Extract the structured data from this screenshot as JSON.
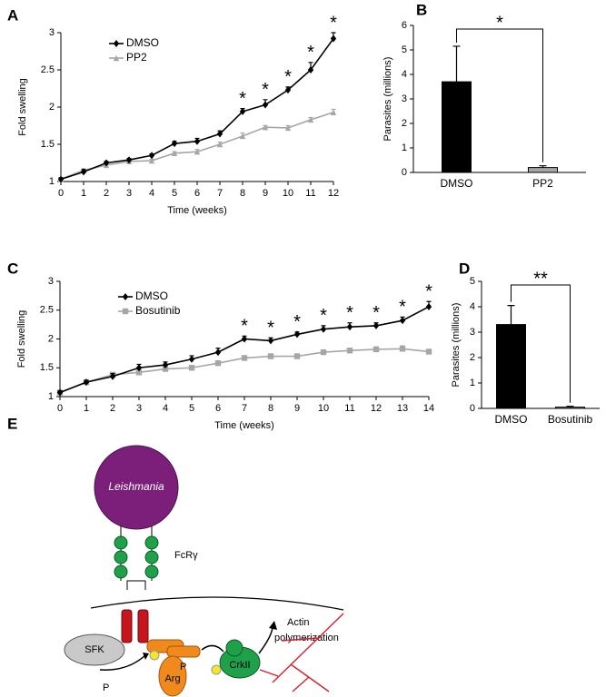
{
  "chart_data": [
    {
      "type": "line",
      "panel": "A",
      "xlabel": "Time (weeks)",
      "ylabel": "Fold swelling",
      "x": [
        0,
        1,
        2,
        3,
        4,
        5,
        6,
        7,
        8,
        9,
        10,
        11,
        12
      ],
      "xlim": [
        0,
        12
      ],
      "xticks": [
        0,
        1,
        2,
        3,
        4,
        5,
        6,
        7,
        8,
        9,
        10,
        11,
        12
      ],
      "ylim": [
        1,
        3
      ],
      "yticks": [
        1,
        1.5,
        2,
        2.5,
        3
      ],
      "legend": "upper left",
      "series": [
        {
          "name": "DMSO",
          "color": "#000000",
          "marker": "diamond",
          "values": [
            1.03,
            1.13,
            1.25,
            1.29,
            1.35,
            1.51,
            1.54,
            1.64,
            1.94,
            2.03,
            2.23,
            2.5,
            2.92
          ],
          "errors": [
            0.02,
            0.03,
            0.02,
            0.02,
            0.02,
            0.03,
            0.04,
            0.04,
            0.04,
            0.07,
            0.04,
            0.1,
            0.08
          ]
        },
        {
          "name": "PP2",
          "color": "#a6a6a6",
          "marker": "triangle",
          "values": [
            1.03,
            1.15,
            1.22,
            1.27,
            1.28,
            1.38,
            1.4,
            1.5,
            1.61,
            1.73,
            1.72,
            1.83,
            1.93
          ],
          "errors": [
            0.02,
            0.02,
            0.02,
            0.02,
            0.02,
            0.02,
            0.03,
            0.03,
            0.04,
            0.02,
            0.03,
            0.03,
            0.04
          ]
        }
      ],
      "annotations": [
        {
          "x": 8,
          "text": "*"
        },
        {
          "x": 9,
          "text": "*"
        },
        {
          "x": 10,
          "text": "*"
        },
        {
          "x": 11,
          "text": "*"
        },
        {
          "x": 12,
          "text": "*"
        }
      ]
    },
    {
      "type": "bar",
      "panel": "B",
      "ylabel": "Parasites (millions)",
      "categories": [
        "DMSO",
        "PP2"
      ],
      "values": [
        3.7,
        0.2
      ],
      "errors": [
        1.45,
        0.07
      ],
      "colors": [
        "#000000",
        "#a6a6a6"
      ],
      "ylim": [
        0,
        6
      ],
      "yticks": [
        0,
        1,
        2,
        3,
        4,
        5,
        6
      ],
      "significance": "*"
    },
    {
      "type": "line",
      "panel": "C",
      "xlabel": "Time (weeks)",
      "ylabel": "Fold swelling",
      "x": [
        0,
        1,
        2,
        3,
        4,
        5,
        6,
        7,
        8,
        9,
        10,
        11,
        12,
        13,
        14
      ],
      "xlim": [
        0,
        14
      ],
      "xticks": [
        0,
        1,
        2,
        3,
        4,
        5,
        6,
        7,
        8,
        9,
        10,
        11,
        12,
        13,
        14
      ],
      "ylim": [
        1,
        3
      ],
      "yticks": [
        1,
        1.5,
        2,
        2.5,
        3
      ],
      "legend": "upper left",
      "series": [
        {
          "name": "DMSO",
          "color": "#000000",
          "marker": "diamond",
          "values": [
            1.07,
            1.25,
            1.35,
            1.5,
            1.55,
            1.65,
            1.77,
            2.0,
            1.97,
            2.08,
            2.17,
            2.21,
            2.23,
            2.32,
            2.56
          ],
          "errors": [
            0.03,
            0.03,
            0.05,
            0.06,
            0.05,
            0.06,
            0.07,
            0.05,
            0.05,
            0.04,
            0.06,
            0.07,
            0.05,
            0.06,
            0.09
          ]
        },
        {
          "name": "Bosutinib",
          "color": "#a6a6a6",
          "marker": "square",
          "values": [
            1.07,
            1.25,
            1.38,
            1.42,
            1.48,
            1.5,
            1.58,
            1.67,
            1.7,
            1.7,
            1.77,
            1.8,
            1.82,
            1.83,
            1.78
          ],
          "errors": [
            0.03,
            0.03,
            0.03,
            0.04,
            0.03,
            0.03,
            0.03,
            0.04,
            0.04,
            0.04,
            0.04,
            0.04,
            0.04,
            0.05,
            0.04
          ]
        }
      ],
      "annotations": [
        {
          "x": 7,
          "text": "*"
        },
        {
          "x": 8,
          "text": "*"
        },
        {
          "x": 9,
          "text": "*"
        },
        {
          "x": 10,
          "text": "*"
        },
        {
          "x": 11,
          "text": "*"
        },
        {
          "x": 12,
          "text": "*"
        },
        {
          "x": 13,
          "text": "*"
        },
        {
          "x": 14,
          "text": "*"
        }
      ]
    },
    {
      "type": "bar",
      "panel": "D",
      "ylabel": "Parasites (millions)",
      "categories": [
        "DMSO",
        "Bosutinib"
      ],
      "values": [
        3.3,
        0.05
      ],
      "errors": [
        0.75,
        0.03
      ],
      "colors": [
        "#000000",
        "#a6a6a6"
      ],
      "ylim": [
        0,
        5
      ],
      "yticks": [
        0,
        1,
        2,
        3,
        4,
        5
      ],
      "significance": "**"
    }
  ],
  "diagram": {
    "panel": "E",
    "labels": [
      "Leishmania",
      "FcRγ",
      "SFK",
      "P",
      "Arg",
      "P",
      "CrkII",
      "Actin",
      "polymerization"
    ]
  }
}
